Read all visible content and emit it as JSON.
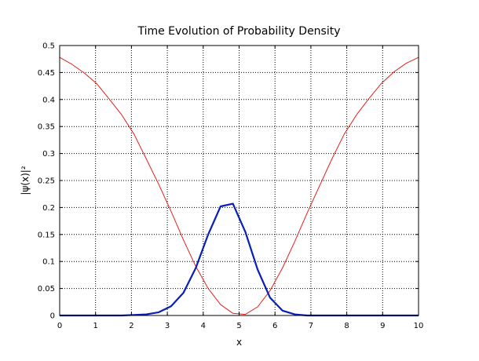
{
  "chart_data": {
    "type": "line",
    "title": "Time Evolution of Probability Density",
    "xlabel": "x",
    "ylabel": "|ψ(x)|²",
    "xlim": [
      0,
      10
    ],
    "ylim": [
      0,
      0.5
    ],
    "grid": true,
    "x_ticks": [
      "0",
      "1",
      "2",
      "3",
      "4",
      "5",
      "6",
      "7",
      "8",
      "9",
      "10"
    ],
    "y_ticks": [
      "0",
      "0.05",
      "0.1",
      "0.15",
      "0.2",
      "0.25",
      "0.3",
      "0.35",
      "0.4",
      "0.45",
      "0.5"
    ],
    "series": [
      {
        "color": "#e0201b",
        "x": [
          0,
          0.345,
          0.69,
          1.034,
          1.379,
          1.724,
          2.069,
          2.414,
          2.759,
          3.103,
          3.448,
          3.793,
          4.138,
          4.483,
          4.828,
          5.172,
          5.517,
          5.862,
          6.207,
          6.552,
          6.897,
          7.241,
          7.586,
          7.931,
          8.276,
          8.621,
          8.966,
          9.31,
          9.655,
          10
        ],
        "y": [
          0.478,
          0.465,
          0.449,
          0.429,
          0.401,
          0.372,
          0.336,
          0.29,
          0.243,
          0.193,
          0.14,
          0.091,
          0.05,
          0.02,
          0.004,
          0.002,
          0.016,
          0.046,
          0.088,
          0.137,
          0.19,
          0.24,
          0.29,
          0.336,
          0.372,
          0.402,
          0.43,
          0.451,
          0.467,
          0.478
        ]
      },
      {
        "color": "#0a1fb5",
        "x": [
          0,
          0.345,
          0.69,
          1.034,
          1.379,
          1.724,
          2.069,
          2.414,
          2.759,
          3.103,
          3.448,
          3.793,
          4.138,
          4.483,
          4.828,
          5.172,
          5.517,
          5.862,
          6.207,
          6.552,
          6.897,
          7.241,
          7.586,
          7.931,
          8.276,
          8.621,
          8.966,
          9.31,
          9.655,
          10
        ],
        "y": [
          0,
          0,
          0,
          0,
          0,
          0,
          0.001,
          0.002,
          0.006,
          0.017,
          0.042,
          0.088,
          0.15,
          0.202,
          0.207,
          0.155,
          0.085,
          0.033,
          0.009,
          0.002,
          0,
          0,
          0,
          0,
          0,
          0,
          0,
          0,
          0,
          0
        ]
      }
    ]
  }
}
